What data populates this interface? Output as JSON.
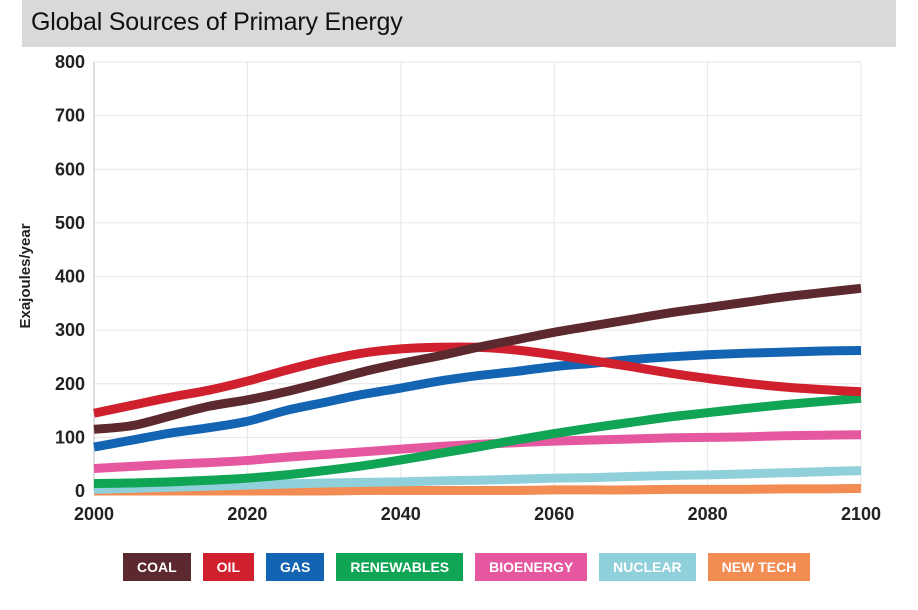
{
  "title": "Global Sources of Primary Energy",
  "chart_data": {
    "type": "line",
    "title": "Global Sources of Primary Energy",
    "xlabel": "",
    "ylabel": "Exajoules/year",
    "xlim": [
      2000,
      2100
    ],
    "ylim": [
      0,
      800
    ],
    "xticks": [
      2000,
      2020,
      2040,
      2060,
      2080,
      2100
    ],
    "yticks": [
      0,
      100,
      200,
      300,
      400,
      500,
      600,
      700,
      800
    ],
    "grid": true,
    "legend_position": "bottom",
    "x": [
      2000,
      2005,
      2010,
      2015,
      2020,
      2025,
      2030,
      2035,
      2040,
      2045,
      2050,
      2055,
      2060,
      2065,
      2070,
      2075,
      2080,
      2085,
      2090,
      2095,
      2100
    ],
    "series": [
      {
        "name": "COAL",
        "color": "#5c2a2e",
        "values": [
          115,
          122,
          140,
          158,
          170,
          185,
          203,
          222,
          238,
          252,
          268,
          282,
          296,
          308,
          320,
          332,
          342,
          352,
          362,
          370,
          378
        ]
      },
      {
        "name": "OIL",
        "color": "#d0202e",
        "values": [
          145,
          160,
          175,
          188,
          205,
          225,
          243,
          257,
          265,
          268,
          268,
          263,
          254,
          243,
          232,
          220,
          210,
          201,
          194,
          189,
          185
        ]
      },
      {
        "name": "GAS",
        "color": "#1464b4",
        "values": [
          82,
          95,
          108,
          118,
          130,
          150,
          165,
          180,
          192,
          205,
          215,
          223,
          232,
          238,
          245,
          250,
          254,
          257,
          259,
          261,
          262
        ]
      },
      {
        "name": "RENEWABLES",
        "color": "#10a455",
        "values": [
          14,
          15,
          17,
          20,
          24,
          30,
          38,
          47,
          58,
          70,
          82,
          95,
          107,
          118,
          128,
          138,
          146,
          154,
          161,
          167,
          173
        ]
      },
      {
        "name": "BIOENERGY",
        "color": "#e558a0",
        "values": [
          42,
          46,
          50,
          53,
          57,
          63,
          68,
          73,
          78,
          83,
          87,
          90,
          93,
          95,
          97,
          99,
          100,
          101,
          103,
          104,
          105
        ]
      },
      {
        "name": "NUCLEAR",
        "color": "#8fd0da",
        "values": [
          3,
          5,
          7,
          9,
          11,
          13,
          15,
          16,
          17,
          19,
          20,
          22,
          24,
          25,
          27,
          29,
          30,
          32,
          34,
          36,
          38
        ]
      },
      {
        "name": "NEW TECH",
        "color": "#f28c52",
        "values": [
          0,
          0,
          0,
          0,
          0,
          0,
          0,
          1,
          1,
          1,
          1,
          1,
          2,
          2,
          2,
          3,
          3,
          3,
          4,
          4,
          5
        ]
      }
    ]
  }
}
